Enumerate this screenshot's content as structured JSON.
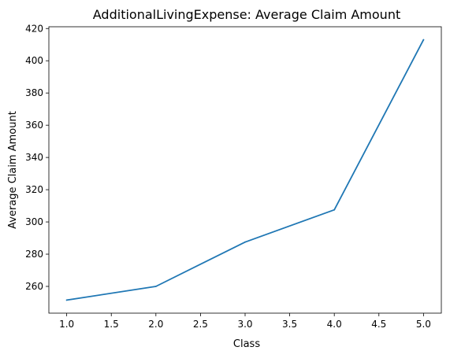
{
  "chart_data": {
    "type": "line",
    "title": "AdditionalLivingExpense: Average Claim Amount",
    "xlabel": "Class",
    "ylabel": "Average Claim Amount",
    "x": [
      1.0,
      2.0,
      3.0,
      4.0,
      5.0
    ],
    "series": [
      {
        "values": [
          251.5,
          260.0,
          287.5,
          307.5,
          413.0
        ],
        "color": "#1f77b4"
      }
    ],
    "xlim": [
      0.8,
      5.2
    ],
    "ylim": [
      243.4,
      421.1
    ],
    "xticks": [
      1.0,
      1.5,
      2.0,
      2.5,
      3.0,
      3.5,
      4.0,
      4.5,
      5.0
    ],
    "xtick_labels": [
      "1.0",
      "1.5",
      "2.0",
      "2.5",
      "3.0",
      "3.5",
      "4.0",
      "4.5",
      "5.0"
    ],
    "yticks": [
      260,
      280,
      300,
      320,
      340,
      360,
      380,
      400,
      420
    ],
    "ytick_labels": [
      "260",
      "280",
      "300",
      "320",
      "340",
      "360",
      "380",
      "400",
      "420"
    ],
    "grid": false,
    "legend": false
  }
}
